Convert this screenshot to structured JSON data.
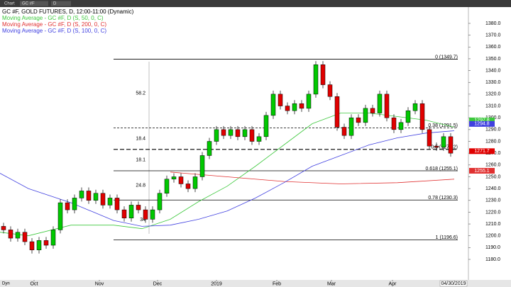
{
  "header": {
    "items": [
      "Chart",
      "GC #F",
      "D"
    ]
  },
  "chart_data": {
    "type": "candlestick",
    "title": "GC #F, GOLD FUTURES, D, 12:00-11:00 (Dynamic)",
    "up_color": "#00c800",
    "down_color": "#e00000",
    "open": [
      1208,
      1205,
      1198,
      1203,
      1195,
      1188,
      1196,
      1192,
      1205,
      1228,
      1222,
      1232,
      1238,
      1230,
      1236,
      1226,
      1232,
      1222,
      1215,
      1226,
      1222,
      1214,
      1222,
      1236,
      1248,
      1250,
      1244,
      1240,
      1250,
      1268,
      1280,
      1290,
      1285,
      1290,
      1284,
      1290,
      1280,
      1284,
      1302,
      1320,
      1310,
      1306,
      1312,
      1308,
      1320,
      1345,
      1328,
      1318,
      1292,
      1285,
      1300,
      1296,
      1308,
      1304,
      1320,
      1300,
      1290,
      1296,
      1306,
      1312,
      1290,
      1276,
      1275,
      1284
    ],
    "high": [
      1211,
      1208,
      1206,
      1206,
      1198,
      1199,
      1199,
      1208,
      1231,
      1231,
      1235,
      1241,
      1241,
      1239,
      1239,
      1235,
      1235,
      1225,
      1229,
      1229,
      1225,
      1225,
      1239,
      1251,
      1253,
      1253,
      1247,
      1253,
      1271,
      1283,
      1293,
      1293,
      1293,
      1293,
      1293,
      1293,
      1287,
      1305,
      1323,
      1323,
      1313,
      1315,
      1315,
      1323,
      1348,
      1348,
      1331,
      1321,
      1295,
      1303,
      1303,
      1311,
      1311,
      1323,
      1323,
      1303,
      1299,
      1309,
      1315,
      1315,
      1293,
      1279,
      1287,
      1287
    ],
    "low": [
      1202,
      1195,
      1195,
      1192,
      1185,
      1185,
      1189,
      1189,
      1202,
      1219,
      1219,
      1229,
      1227,
      1227,
      1223,
      1223,
      1219,
      1212,
      1212,
      1219,
      1211,
      1211,
      1219,
      1233,
      1245,
      1241,
      1237,
      1237,
      1247,
      1265,
      1277,
      1282,
      1282,
      1281,
      1281,
      1277,
      1277,
      1281,
      1299,
      1307,
      1303,
      1303,
      1305,
      1305,
      1317,
      1325,
      1315,
      1289,
      1282,
      1282,
      1293,
      1293,
      1301,
      1301,
      1297,
      1287,
      1287,
      1293,
      1303,
      1287,
      1273,
      1272,
      1272,
      1267
    ],
    "close": [
      1205,
      1198,
      1203,
      1195,
      1188,
      1196,
      1192,
      1205,
      1228,
      1222,
      1232,
      1238,
      1230,
      1236,
      1226,
      1232,
      1222,
      1215,
      1226,
      1222,
      1214,
      1222,
      1236,
      1248,
      1250,
      1244,
      1240,
      1250,
      1268,
      1280,
      1290,
      1285,
      1290,
      1284,
      1290,
      1280,
      1284,
      1302,
      1320,
      1310,
      1306,
      1312,
      1308,
      1320,
      1345,
      1328,
      1318,
      1292,
      1285,
      1300,
      1296,
      1308,
      1304,
      1320,
      1300,
      1290,
      1296,
      1306,
      1312,
      1290,
      1276,
      1275,
      1284,
      1270
    ],
    "series": [
      {
        "name": "Moving Average - GC #F, D (S, 50, 0, C)",
        "color": "#3cc83c",
        "x": [
          -0.5,
          3.5,
          9.5,
          15.5,
          19.5,
          23.5,
          27.5,
          31.5,
          35.5,
          39.5,
          43.5,
          47.5,
          51.5,
          55.5,
          59.5,
          63.5
        ],
        "values": [
          1203,
          1200,
          1209,
          1209,
          1206,
          1214,
          1229,
          1242,
          1259,
          1277,
          1295,
          1304,
          1304,
          1301,
          1298,
          1292
        ]
      },
      {
        "name": "Moving Average - GC #F, D (S, 200, 0, C)",
        "color": "#e03030",
        "x": [
          23.5,
          31.5,
          39.5,
          47.5,
          55.5,
          63.5
        ],
        "values": [
          1254,
          1250,
          1246,
          1244,
          1245,
          1248
        ]
      },
      {
        "name": "Moving Average - GC #F, D (S, 100, 0, C)",
        "color": "#4040e0",
        "x": [
          -0.5,
          3.5,
          9.5,
          15.5,
          19.5,
          23.5,
          27.5,
          31.5,
          35.5,
          39.5,
          43.5,
          47.5,
          51.5,
          55.5,
          59.5,
          63.5
        ],
        "values": [
          1253,
          1240,
          1228,
          1213,
          1208,
          1209,
          1214,
          1221,
          1232,
          1245,
          1259,
          1268,
          1277,
          1283,
          1287,
          1289
        ]
      }
    ],
    "fib": {
      "levels": [
        {
          "value": 1349.7,
          "label": "0 (1349.7)"
        },
        {
          "value": 1291.5,
          "label": "0.38 (1291.5)"
        },
        {
          "value": 1273.2,
          "label": "0.5 (1273.2)"
        },
        {
          "value": 1255.1,
          "label": "0.618 (1255.1)"
        },
        {
          "value": 1230.3,
          "label": "0.78 (1230.3)"
        },
        {
          "value": 1196.6,
          "label": "1 (1196.6)"
        }
      ],
      "gaps": [
        58.2,
        18.4,
        18.1,
        24.8,
        34
      ]
    },
    "price_tags": [
      {
        "value": 1297.8,
        "color": "#3cc83c"
      },
      {
        "value": 1294.8,
        "color": "#4040e0"
      },
      {
        "value": 1271.7,
        "color": "#e00000"
      },
      {
        "value": 1255.1,
        "color": "#e03030"
      }
    ],
    "xlim": [
      -0.5,
      65.5
    ],
    "xticks": [
      {
        "value": 4.3,
        "label": "Oct"
      },
      {
        "value": 13.5,
        "label": "Nov"
      },
      {
        "value": 21.7,
        "label": "Dec"
      },
      {
        "value": 30,
        "label": "2019"
      },
      {
        "value": 38.5,
        "label": "Feb"
      },
      {
        "value": 46.2,
        "label": "Mar"
      },
      {
        "value": 54.8,
        "label": "Apr"
      }
    ],
    "ylim": [
      1162.6,
      1393.8
    ],
    "yticks": [
      {
        "value": 1180,
        "label": "1180.0"
      },
      {
        "value": 1190,
        "label": "1190.0"
      },
      {
        "value": 1200,
        "label": "1200.0"
      },
      {
        "value": 1210,
        "label": "1210.0"
      },
      {
        "value": 1220,
        "label": "1220.0"
      },
      {
        "value": 1230,
        "label": "1230.0"
      },
      {
        "value": 1240,
        "label": "1240.0"
      },
      {
        "value": 1250,
        "label": "1250.0"
      },
      {
        "value": 1260,
        "label": "1260.0"
      },
      {
        "value": 1270,
        "label": "1270.0"
      },
      {
        "value": 1280,
        "label": "1280.0"
      },
      {
        "value": 1290,
        "label": "1290.0"
      },
      {
        "value": 1300,
        "label": "1300.0"
      },
      {
        "value": 1310,
        "label": "1310.0"
      },
      {
        "value": 1320,
        "label": "1320.0"
      },
      {
        "value": 1330,
        "label": "1330.0"
      },
      {
        "value": 1340,
        "label": "1340.0"
      },
      {
        "value": 1350,
        "label": "1350.0"
      },
      {
        "value": 1360,
        "label": "1360.0"
      },
      {
        "value": 1370,
        "label": "1370.0"
      },
      {
        "value": 1380,
        "label": "1380.0"
      }
    ],
    "date_left": "Dyn",
    "date_right": "04/30/2019"
  }
}
